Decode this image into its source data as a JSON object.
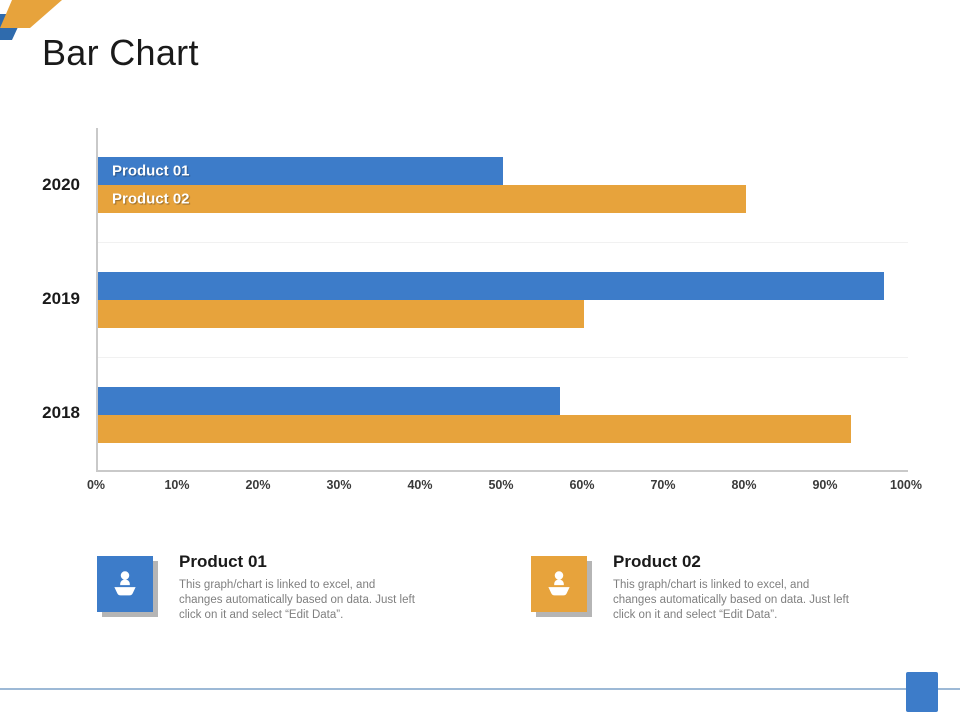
{
  "slide": {
    "title": "Bar Chart"
  },
  "chart_data": {
    "type": "bar",
    "orientation": "horizontal",
    "title": "Bar Chart",
    "categories": [
      "2020",
      "2019",
      "2018"
    ],
    "series": [
      {
        "name": "Product 01",
        "color": "#3d7cc9",
        "values": [
          50,
          97,
          57
        ]
      },
      {
        "name": "Product 02",
        "color": "#e7a33c",
        "values": [
          80,
          60,
          93
        ]
      }
    ],
    "x_ticks": [
      "0%",
      "10%",
      "20%",
      "30%",
      "40%",
      "50%",
      "60%",
      "70%",
      "80%",
      "90%",
      "100%"
    ],
    "xlim": [
      0,
      100
    ],
    "grid": false,
    "legend_position": "below",
    "bar_labels": {
      "shown_on_category": "2020",
      "labels": [
        "Product 01",
        "Product 02"
      ]
    }
  },
  "legend": {
    "items": [
      {
        "title": "Product 01",
        "description": "This graph/chart is linked to excel, and changes automatically based on data. Just left click on it and select “Edit Data”.",
        "color": "#3d7cc9",
        "icon": "hand-holding-person-icon"
      },
      {
        "title": "Product 02",
        "description": "This graph/chart is linked to excel, and changes automatically based on data. Just left click on it and select “Edit Data”.",
        "color": "#e7a33c",
        "icon": "hand-holding-person-icon"
      }
    ]
  },
  "decor": {
    "accent_blue": "#3d7cc9",
    "accent_yellow": "#e7a33c",
    "footer_line_color": "#9db9d6"
  }
}
